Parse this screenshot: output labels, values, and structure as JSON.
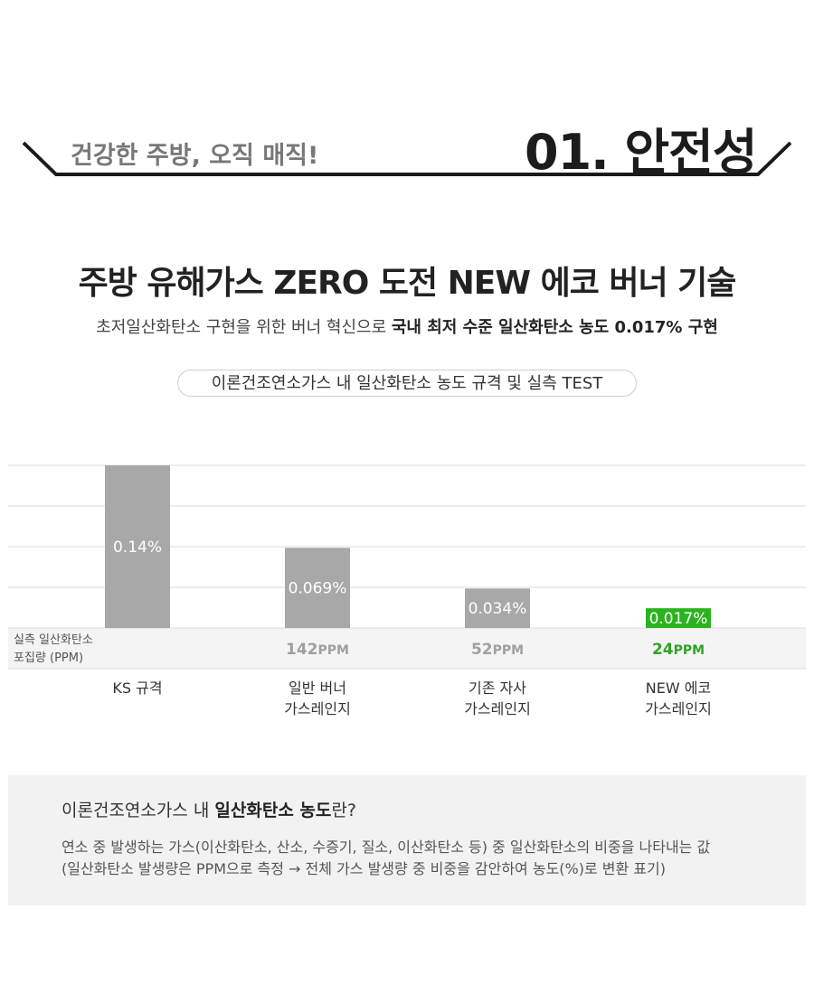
{
  "header": {
    "tagline": "건강한 주방, 오직 매직!",
    "section_no": "01. 안전성"
  },
  "main": {
    "title": "주방 유해가스 ZERO 도전 NEW 에코 버너 기술",
    "subtitle_plain": "초저일산화탄소 구현을 위한 버너 혁신으로 ",
    "subtitle_bold": "국내 최저 수준 일산화탄소 농도 0.017% 구현",
    "pill": "이론건조연소가스 내 일산화탄소 농도 규격 및 실측 TEST"
  },
  "chart_data": {
    "type": "bar",
    "categories": [
      "KS 규격",
      "일반 버너\n가스레인지",
      "기존 자사\n가스레인지",
      "NEW 에코\n가스레인지"
    ],
    "values": [
      0.14,
      0.069,
      0.034,
      0.017
    ],
    "value_labels": [
      "0.14%",
      "0.069%",
      "0.034%",
      "0.017%"
    ],
    "ppm_row_label": "실측 일산화탄소\n포집량 (PPM)",
    "ppm_values": [
      "",
      "142",
      "52",
      "24"
    ],
    "ppm_unit": "PPM",
    "bar_colors": [
      "#a8a8a8",
      "#a8a8a8",
      "#a8a8a8",
      "#2bb31e"
    ],
    "ppm_colors": [
      "#a0a0a0",
      "#a0a0a0",
      "#a0a0a0",
      "#2fa324"
    ],
    "grid": true
  },
  "info": {
    "title_plain": "이론건조연소가스 내 ",
    "title_bold": "일산화탄소 농도",
    "title_tail": "란?",
    "line1": "연소 중 발생하는 가스(이산화탄소, 산소, 수증기, 질소, 이산화탄소 등) 중 일산화탄소의 비중을 나타내는 값",
    "line2": "(일산화탄소 발생량은 PPM으로 측정  → 전체 가스 발생량 중 비중을 감안하여 농도(%)로 변환 표기)"
  }
}
